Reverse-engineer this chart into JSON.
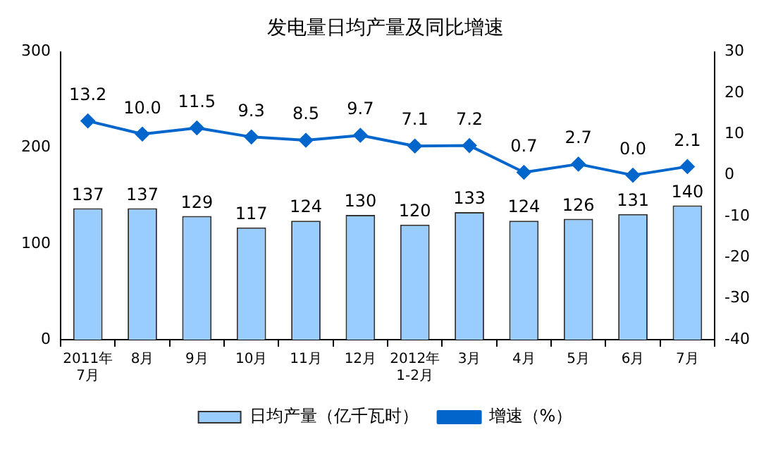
{
  "chart_data": {
    "type": "bar",
    "title": "发电量日均产量及同比增速",
    "categories": [
      "2011年\n7月",
      "8月",
      "9月",
      "10月",
      "11月",
      "12月",
      "2012年\n1-2月",
      "3月",
      "4月",
      "5月",
      "6月",
      "7月"
    ],
    "series": [
      {
        "name": "日均产量（亿千瓦时）",
        "color": "#99ccff",
        "values": [
          137,
          137,
          129,
          117,
          124,
          130,
          120,
          133,
          124,
          126,
          131,
          140
        ]
      },
      {
        "name": "增速（%）",
        "type": "line",
        "axis": "y2",
        "color": "#0066cc",
        "marker": "diamond",
        "values": [
          13.2,
          10.0,
          11.5,
          9.3,
          8.5,
          9.7,
          7.1,
          7.2,
          0.7,
          2.7,
          0.0,
          2.1
        ],
        "value_labels": [
          "13.2",
          "10.0",
          "11.5",
          "9.3",
          "8.5",
          "9.7",
          "7.1",
          "7.2",
          "0.7",
          "2.7",
          "0.0",
          "2.1"
        ]
      }
    ],
    "ylim": [
      0,
      300
    ],
    "yticks": [
      0,
      100,
      200,
      300
    ],
    "y2lim": [
      -40,
      30
    ],
    "y2ticks": [
      -40,
      -30,
      -20,
      -10,
      0,
      10,
      20,
      30
    ],
    "data_labels": true,
    "grid": false,
    "legend": "bottom"
  }
}
